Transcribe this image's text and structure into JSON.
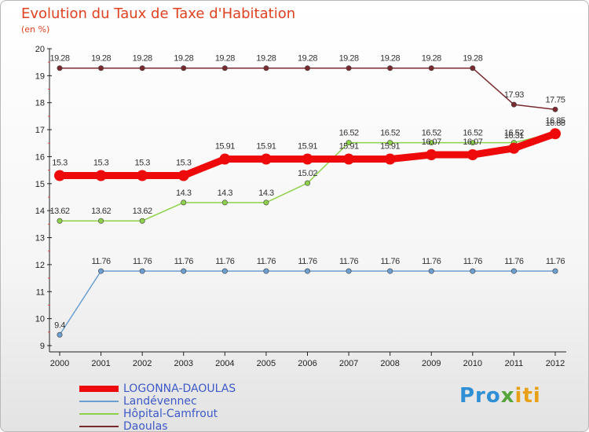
{
  "header": {
    "title": "Evolution du Taux de Taxe d'Habitation",
    "subtitle": "(en %)"
  },
  "chart_data": {
    "type": "line",
    "title": "Evolution du Taux de Taxe d'Habitation",
    "ylabel": "(en %)",
    "x": [
      "2000",
      "2001",
      "2002",
      "2003",
      "2004",
      "2005",
      "2006",
      "2007",
      "2008",
      "2009",
      "2010",
      "2011",
      "2012"
    ],
    "ylim": [
      9,
      20
    ],
    "yticks": [
      9,
      10,
      11,
      12,
      13,
      14,
      15,
      16,
      17,
      18,
      19,
      20
    ],
    "grid": "none",
    "legend_position": "bottom-left",
    "series": [
      {
        "name": "Daoulas",
        "color": "#7a2a2f",
        "width": 1.5,
        "values": [
          19.28,
          19.28,
          19.28,
          19.28,
          19.28,
          19.28,
          19.28,
          19.28,
          19.28,
          19.28,
          19.28,
          17.93,
          17.75
        ],
        "labels": [
          "19.28",
          "19.28",
          "19.28",
          "19.28",
          "19.28",
          "19.28",
          "19.28",
          "19.28",
          "19.28",
          "19.28",
          "19.28",
          "17.93",
          "17.75"
        ]
      },
      {
        "name": "Hôpital-Camfrout",
        "color": "#8ed14a",
        "width": 1.5,
        "values": [
          13.62,
          13.62,
          13.62,
          14.3,
          14.3,
          14.3,
          15.02,
          16.52,
          16.52,
          16.52,
          16.52,
          16.52,
          16.88
        ],
        "labels": [
          "13.62",
          "13.62",
          "13.62",
          "14.3",
          "14.3",
          "14.3",
          "15.02",
          "16.52",
          "16.52",
          "16.52",
          "16.52",
          "16.52",
          "16.88"
        ]
      },
      {
        "name": "Landévennec",
        "color": "#6b9fd1",
        "width": 1.5,
        "values": [
          9.4,
          11.76,
          11.76,
          11.76,
          11.76,
          11.76,
          11.76,
          11.76,
          11.76,
          11.76,
          11.76,
          11.76,
          11.76
        ],
        "labels": [
          "9.4",
          "11.76",
          "11.76",
          "11.76",
          "11.76",
          "11.76",
          "11.76",
          "11.76",
          "11.76",
          "11.76",
          "11.76",
          "11.76",
          "11.76"
        ]
      },
      {
        "name": "LOGONNA-DAOULAS",
        "color": "#ee0a0a",
        "width": 9,
        "values": [
          15.3,
          15.3,
          15.3,
          15.3,
          15.91,
          15.91,
          15.91,
          15.91,
          15.91,
          16.07,
          16.07,
          16.31,
          16.85
        ],
        "labels": [
          "15.3",
          "15.3",
          "15.3",
          "15.3",
          "15.91",
          "15.91",
          "15.91",
          "15.91",
          "15.91",
          "16.07",
          "16.07",
          "16.31",
          "16.85"
        ]
      }
    ]
  },
  "legend": {
    "items": [
      {
        "name": "LOGONNA-DAOULAS",
        "color": "#ee0a0a",
        "thickness": 8
      },
      {
        "name": "Landévennec",
        "color": "#6b9fd1",
        "thickness": 2
      },
      {
        "name": "Hôpital-Camfrout",
        "color": "#8ed14a",
        "thickness": 2
      },
      {
        "name": "Daoulas",
        "color": "#7a2a2f",
        "thickness": 2
      }
    ]
  },
  "logo": {
    "part1": "Pro",
    "part2": "x",
    "part3": "iti"
  }
}
